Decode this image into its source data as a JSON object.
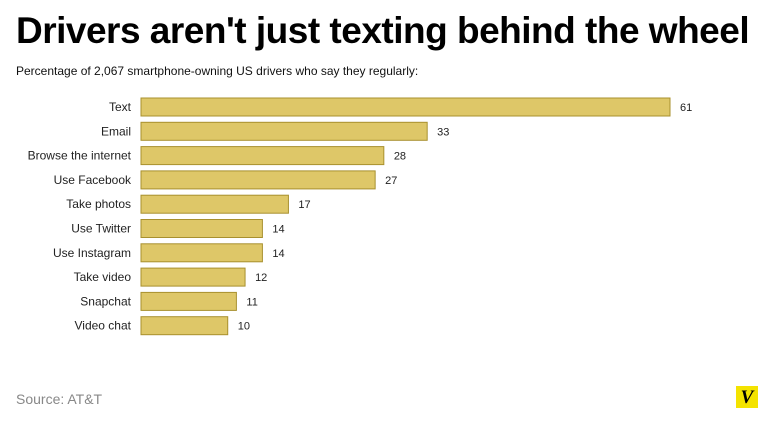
{
  "header": {
    "title": "Drivers aren't just texting behind the wheel",
    "subtitle": "Percentage of 2,067 smartphone-owning US drivers who say they regularly:"
  },
  "footer": {
    "source": "Source: AT&T",
    "logo_text": "V"
  },
  "colors": {
    "bar_fill": "#dec768",
    "bar_stroke": "#a8902e",
    "logo_bg": "#f4e300"
  },
  "chart_data": {
    "type": "bar",
    "orientation": "horizontal",
    "title": "Drivers aren't just texting behind the wheel",
    "subtitle": "Percentage of 2,067 smartphone-owning US drivers who say they regularly:",
    "categories": [
      "Text",
      "Email",
      "Browse the internet",
      "Use Facebook",
      "Take photos",
      "Use Twitter",
      "Use Instagram",
      "Take video",
      "Snapchat",
      "Video chat"
    ],
    "values": [
      61,
      33,
      28,
      27,
      17,
      14,
      14,
      12,
      11,
      10
    ],
    "xlabel": "",
    "ylabel": "",
    "xlim": [
      0,
      61
    ],
    "grid": false,
    "legend": "none",
    "data_labels": true
  }
}
